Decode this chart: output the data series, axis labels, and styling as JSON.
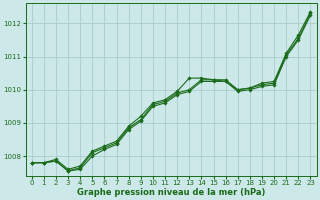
{
  "bg_color": "#cce8e8",
  "grid_color": "#aacccc",
  "line_color": "#1a6b1a",
  "xlabel": "Graphe pression niveau de la mer (hPa)",
  "xlim": [
    -0.5,
    23.5
  ],
  "ylim": [
    1007.4,
    1012.6
  ],
  "yticks": [
    1008,
    1009,
    1010,
    1011,
    1012
  ],
  "xticks": [
    0,
    1,
    2,
    3,
    4,
    5,
    6,
    7,
    8,
    9,
    10,
    11,
    12,
    13,
    14,
    15,
    16,
    17,
    18,
    19,
    20,
    21,
    22,
    23
  ],
  "series1_y": [
    1007.8,
    1007.8,
    1007.9,
    1007.6,
    1007.7,
    1008.15,
    1008.3,
    1008.45,
    1008.9,
    1009.2,
    1009.6,
    1009.7,
    1009.95,
    1010.35,
    1010.35,
    1010.3,
    1010.25,
    1010.0,
    1010.05,
    1010.2,
    1010.25,
    1011.1,
    1011.65,
    1012.35
  ],
  "series2_y": [
    1007.8,
    1007.8,
    1007.85,
    1007.55,
    1007.65,
    1008.1,
    1008.25,
    1008.4,
    1008.85,
    1009.1,
    1009.55,
    1009.65,
    1009.9,
    1010.0,
    1010.3,
    1010.3,
    1010.3,
    1010.0,
    1010.05,
    1010.15,
    1010.2,
    1011.05,
    1011.55,
    1012.3
  ],
  "series3_y": [
    1007.8,
    1007.8,
    1007.85,
    1007.55,
    1007.6,
    1008.0,
    1008.2,
    1008.35,
    1008.8,
    1009.05,
    1009.5,
    1009.6,
    1009.85,
    1009.95,
    1010.25,
    1010.25,
    1010.25,
    1009.95,
    1010.0,
    1010.1,
    1010.15,
    1011.0,
    1011.5,
    1012.25
  ],
  "tick_labelsize": 5,
  "xlabel_fontsize": 6,
  "linewidth": 0.8,
  "markersize": 1.8
}
